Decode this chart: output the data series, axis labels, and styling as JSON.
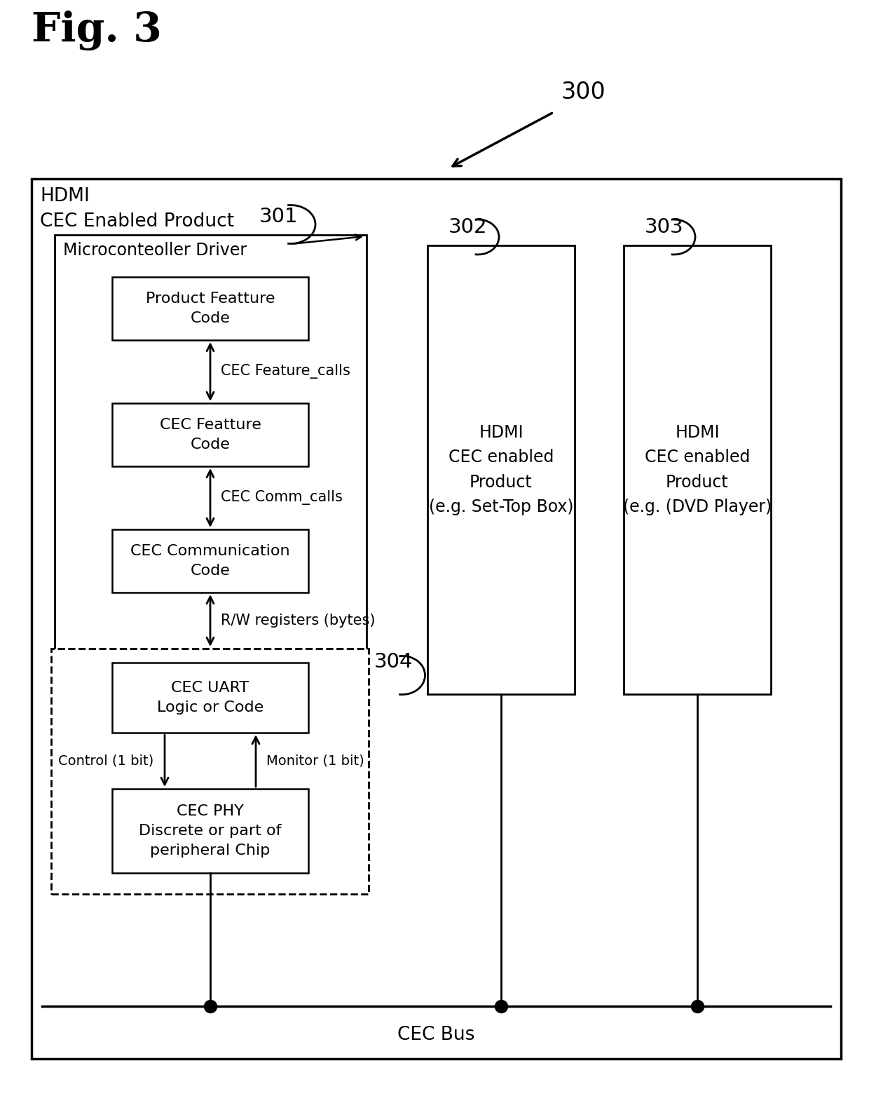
{
  "fig_title": "Fig. 3",
  "bg_color": "#ffffff",
  "outer_box_label": "HDMI\nCEC Enabled Product",
  "ref_300": "300",
  "ref_301": "301",
  "ref_302": "302",
  "ref_303": "303",
  "ref_304": "304",
  "box_microcontroller": "Microconteoller Driver",
  "box_product_feature": "Product Featture\nCode",
  "box_cec_feature": "CEC Featture\nCode",
  "box_cec_comm": "CEC Communication\nCode",
  "box_cec_uart": "CEC UART\nLogic or Code",
  "box_cec_phy": "CEC PHY\nDiscrete or part of\nperipheral Chip",
  "label_feature_calls": "CEC Feature_calls",
  "label_comm_calls": "CEC Comm_calls",
  "label_rw_registers": "R/W registers (bytes)",
  "label_control": "Control (1 bit)",
  "label_monitor": "Monitor (1 bit)",
  "label_cec_bus": "CEC Bus",
  "box_hdmi1": "HDMI\nCEC enabled\nProduct\n(e.g. Set-Top Box)",
  "box_hdmi2": "HDMI\nCEC enabled\nProduct\n(e.g. (DVD Player)"
}
